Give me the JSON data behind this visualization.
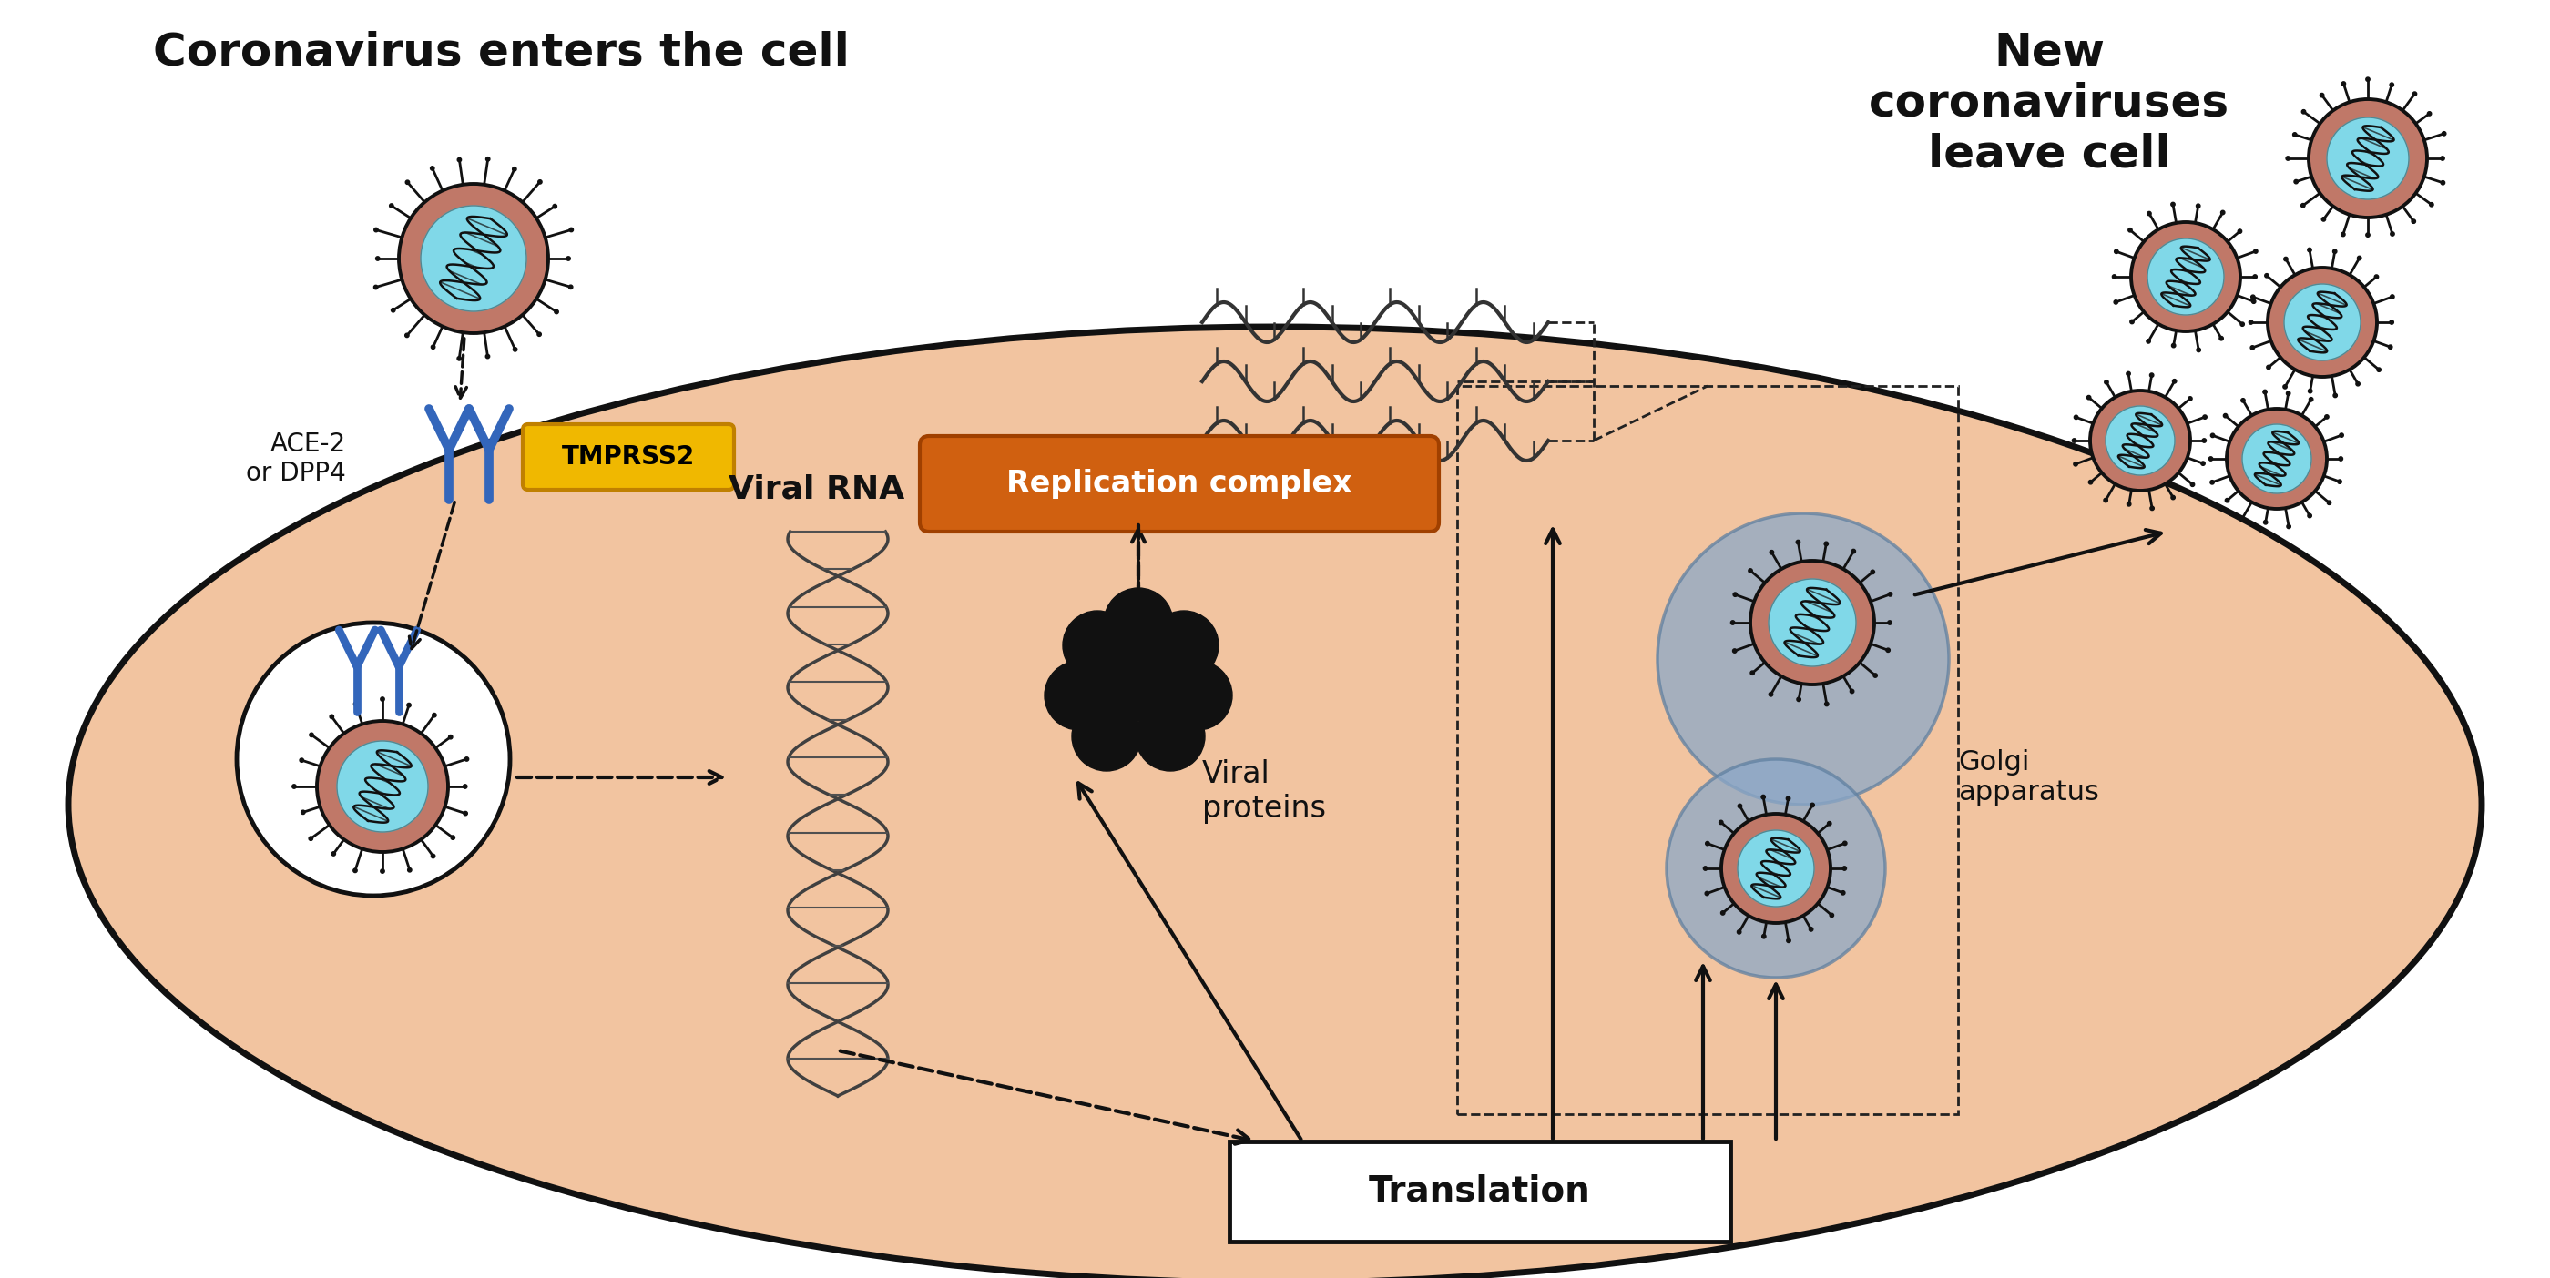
{
  "title_left": "Coronavirus enters the cell",
  "title_right": "New\ncoronaviruses\nleave cell",
  "cell_fill": "#f2c4a0",
  "cell_edge": "#111111",
  "virus_body_color": "#c07868",
  "virus_inner_color": "#80d8e8",
  "virus_spike_color": "#111111",
  "receptor_color": "#3366bb",
  "ace2_label": "ACE-2\nor DPP4",
  "tmprss2_label": "TMPRSS2",
  "tmprss2_fill": "#f0b800",
  "tmprss2_edge": "#c08000",
  "replication_label": "Replication complex",
  "replication_fill": "#d06010",
  "replication_edge": "#a04000",
  "viral_rna_label": "Viral RNA",
  "viral_proteins_label": "Viral\nproteins",
  "translation_label": "Translation",
  "golgi_label": "Golgi\napparatus",
  "bg_color": "#ffffff",
  "text_color": "#111111",
  "arrow_color": "#111111",
  "dashed_color": "#222222",
  "title_fontsize": 36,
  "label_fontsize": 24,
  "small_fontsize": 20,
  "tmprss_fontsize": 18
}
